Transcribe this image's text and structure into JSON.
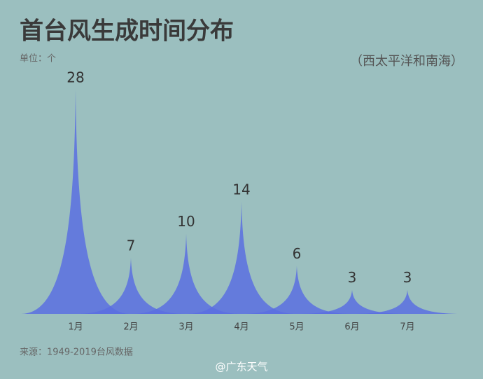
{
  "chart_data": {
    "type": "peak",
    "title": "首台风生成时间分布",
    "subtitle": "（西太平洋和南海）",
    "unit": "单位：个",
    "categories": [
      "1月",
      "2月",
      "3月",
      "4月",
      "5月",
      "6月",
      "7月"
    ],
    "values": [
      28,
      7,
      10,
      14,
      6,
      3,
      3
    ],
    "color": "#5a6ee0",
    "source": "来源：1949-2019台风数据",
    "watermark": "@广东天气"
  }
}
